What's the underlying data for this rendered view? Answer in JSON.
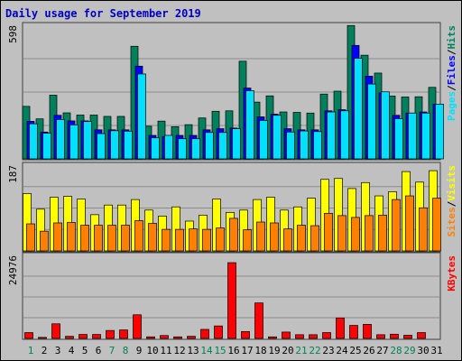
{
  "chart_data": [
    {
      "type": "bar",
      "title": "Daily usage for September 2019",
      "categories": [
        "1",
        "2",
        "3",
        "4",
        "5",
        "6",
        "7",
        "8",
        "9",
        "10",
        "11",
        "12",
        "13",
        "14",
        "15",
        "16",
        "17",
        "18",
        "19",
        "20",
        "21",
        "22",
        "23",
        "24",
        "25",
        "26",
        "27",
        "28",
        "29",
        "30",
        "31"
      ],
      "weekend_days": [
        "1",
        "7",
        "8",
        "14",
        "15",
        "21",
        "22",
        "28",
        "29"
      ],
      "ylim": [
        0,
        598
      ],
      "ymax_label": "598",
      "axis_labels": [
        "Hits",
        "Files",
        "Pages"
      ],
      "axis_label_separator": "/",
      "series": [
        {
          "name": "Hits",
          "color": "#00805c",
          "values": [
            235,
            179,
            285,
            206,
            196,
            196,
            190,
            190,
            504,
            146,
            169,
            144,
            153,
            183,
            213,
            215,
            437,
            254,
            282,
            210,
            208,
            205,
            290,
            303,
            597,
            464,
            384,
            281,
            277,
            278,
            320
          ]
        },
        {
          "name": "Files",
          "color": "#0000ff",
          "values": [
            168,
            120,
            195,
            170,
            170,
            130,
            130,
            130,
            415,
            105,
            100,
            105,
            105,
            130,
            135,
            138,
            317,
            188,
            200,
            135,
            130,
            130,
            215,
            220,
            508,
            370,
            295,
            195,
            205,
            210,
            245
          ]
        },
        {
          "name": "Pages",
          "color": "#00e0ff",
          "values": [
            157,
            115,
            176,
            152,
            167,
            113,
            126,
            124,
            380,
            94,
            105,
            90,
            90,
            118,
            118,
            135,
            305,
            172,
            195,
            120,
            125,
            122,
            210,
            215,
            450,
            335,
            300,
            180,
            205,
            205,
            245
          ]
        }
      ]
    },
    {
      "type": "bar",
      "categories": [
        "1",
        "2",
        "3",
        "4",
        "5",
        "6",
        "7",
        "8",
        "9",
        "10",
        "11",
        "12",
        "13",
        "14",
        "15",
        "16",
        "17",
        "18",
        "19",
        "20",
        "21",
        "22",
        "23",
        "24",
        "25",
        "26",
        "27",
        "28",
        "29",
        "30",
        "31"
      ],
      "ylim": [
        0,
        187
      ],
      "ymax_label": "187",
      "axis_labels": [
        "Visits",
        "Sites"
      ],
      "axis_label_separator": "/",
      "series": [
        {
          "name": "Visits",
          "color": "#ffff00",
          "values": [
            125,
            91,
            117,
            119,
            113,
            79,
            100,
            100,
            112,
            89,
            76,
            96,
            65,
            78,
            113,
            84,
            89,
            112,
            117,
            89,
            96,
            115,
            156,
            158,
            136,
            149,
            120,
            129,
            173,
            150,
            175
          ]
        },
        {
          "name": "Sites",
          "color": "#ff8000",
          "values": [
            59,
            43,
            61,
            62,
            56,
            56,
            56,
            56,
            66,
            60,
            47,
            47,
            48,
            47,
            50,
            71,
            46,
            63,
            61,
            48,
            56,
            55,
            82,
            77,
            73,
            77,
            78,
            112,
            120,
            94,
            115
          ]
        }
      ]
    },
    {
      "type": "bar",
      "categories": [
        "1",
        "2",
        "3",
        "4",
        "5",
        "6",
        "7",
        "8",
        "9",
        "10",
        "11",
        "12",
        "13",
        "14",
        "15",
        "16",
        "17",
        "18",
        "19",
        "20",
        "21",
        "22",
        "23",
        "24",
        "25",
        "26",
        "27",
        "28",
        "29",
        "30",
        "31"
      ],
      "ylim": [
        0,
        24976
      ],
      "ymax_label": "24976",
      "axis_labels": [
        "KBytes"
      ],
      "series": [
        {
          "name": "KBytes",
          "color": "#ff0000",
          "values": [
            1760,
            320,
            4400,
            640,
            1200,
            1200,
            2400,
            2560,
            7120,
            480,
            880,
            480,
            640,
            2720,
            3760,
            22800,
            2080,
            10680,
            480,
            1920,
            1120,
            1120,
            1760,
            6160,
            3920,
            4240,
            1120,
            1280,
            960,
            1760,
            0
          ]
        }
      ]
    }
  ]
}
